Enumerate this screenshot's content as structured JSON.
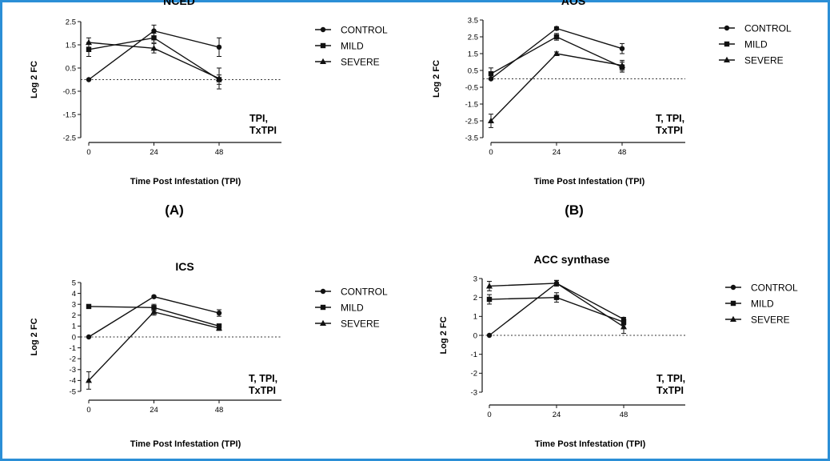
{
  "panel_labels": [
    "(A)",
    "(B)"
  ],
  "chart_data": [
    {
      "type": "line",
      "title": "NCED",
      "xlabel": "Time Post Infestation (TPI)",
      "ylabel": "Log 2 FC",
      "x": [
        0,
        24,
        48
      ],
      "xticks": [
        "0",
        "24",
        "48"
      ],
      "yticks": [
        "2.5",
        "1.5",
        "0.5",
        "-0.5",
        "-1.5",
        "-2.5"
      ],
      "ylim": [
        -2.5,
        2.5
      ],
      "baseline": 0,
      "legend": "right",
      "annotation": [
        "TPI,",
        "TxTPI"
      ],
      "series": [
        {
          "name": "CONTROL",
          "marker": "circle",
          "values": [
            0,
            2.1,
            1.4
          ],
          "errors": [
            0,
            0.25,
            0.4
          ]
        },
        {
          "name": "MILD",
          "marker": "square",
          "values": [
            1.3,
            1.8,
            0.0
          ],
          "errors": [
            0.3,
            0.2,
            0.2
          ]
        },
        {
          "name": "SEVERE",
          "marker": "triangle",
          "values": [
            1.6,
            1.35,
            0.05
          ],
          "errors": [
            0.2,
            0.2,
            0.45
          ]
        }
      ]
    },
    {
      "type": "line",
      "title": "AOS",
      "xlabel": "Time Post Infestation (TPI)",
      "ylabel": "Log 2 FC",
      "x": [
        0,
        24,
        48
      ],
      "xticks": [
        "0",
        "24",
        "48"
      ],
      "yticks": [
        "3.5",
        "2.5",
        "1.5",
        "0.5",
        "-0.5",
        "-1.5",
        "-2.5",
        "-3.5"
      ],
      "ylim": [
        -3.5,
        3.5
      ],
      "baseline": 0,
      "legend": "right",
      "annotation": [
        "T, TPI,",
        "TxTPI"
      ],
      "series": [
        {
          "name": "CONTROL",
          "marker": "circle",
          "values": [
            0,
            3.0,
            1.8
          ],
          "errors": [
            0,
            0.1,
            0.3
          ]
        },
        {
          "name": "MILD",
          "marker": "square",
          "values": [
            0.3,
            2.5,
            0.7
          ],
          "errors": [
            0.35,
            0.2,
            0.3
          ]
        },
        {
          "name": "SEVERE",
          "marker": "triangle",
          "values": [
            -2.5,
            1.5,
            0.8
          ],
          "errors": [
            0.4,
            0.1,
            0.3
          ]
        }
      ]
    },
    {
      "type": "line",
      "title": "ICS",
      "xlabel": "Time Post Infestation (TPI)",
      "ylabel": "Log 2 FC",
      "x": [
        0,
        24,
        48
      ],
      "xticks": [
        "0",
        "24",
        "48"
      ],
      "yticks": [
        "5",
        "4",
        "3",
        "2",
        "1",
        "0",
        "-1",
        "-2",
        "-3",
        "-4",
        "-5"
      ],
      "ylim": [
        -5,
        5
      ],
      "baseline": 0,
      "legend": "right",
      "annotation": [
        "T, TPI,",
        "TxTPI"
      ],
      "series": [
        {
          "name": "CONTROL",
          "marker": "circle",
          "values": [
            0,
            3.7,
            2.2
          ],
          "errors": [
            0,
            0.1,
            0.3
          ]
        },
        {
          "name": "MILD",
          "marker": "square",
          "values": [
            2.8,
            2.7,
            1.0
          ],
          "errors": [
            0.15,
            0.3,
            0.2
          ]
        },
        {
          "name": "SEVERE",
          "marker": "triangle",
          "values": [
            -4.0,
            2.3,
            0.8
          ],
          "errors": [
            0.8,
            0.3,
            0.2
          ]
        }
      ]
    },
    {
      "type": "line",
      "title": "ACC synthase",
      "xlabel": "Time Post Infestation (TPI)",
      "ylabel": "Log 2 FC",
      "x": [
        0,
        24,
        48
      ],
      "xticks": [
        "0",
        "24",
        "48"
      ],
      "yticks": [
        "3",
        "2",
        "1",
        "0",
        "-1",
        "-2",
        "-3"
      ],
      "ylim": [
        -3,
        3
      ],
      "baseline": 0,
      "legend": "right",
      "annotation": [
        "T, TPI,",
        "TxTPI"
      ],
      "series": [
        {
          "name": "CONTROL",
          "marker": "circle",
          "values": [
            0,
            2.75,
            0.85
          ],
          "errors": [
            0,
            0.15,
            0.1
          ]
        },
        {
          "name": "MILD",
          "marker": "square",
          "values": [
            1.9,
            2.0,
            0.7
          ],
          "errors": [
            0.25,
            0.25,
            0.15
          ]
        },
        {
          "name": "SEVERE",
          "marker": "triangle",
          "values": [
            2.6,
            2.75,
            0.45
          ],
          "errors": [
            0.25,
            0.15,
            0.35
          ]
        }
      ]
    }
  ]
}
